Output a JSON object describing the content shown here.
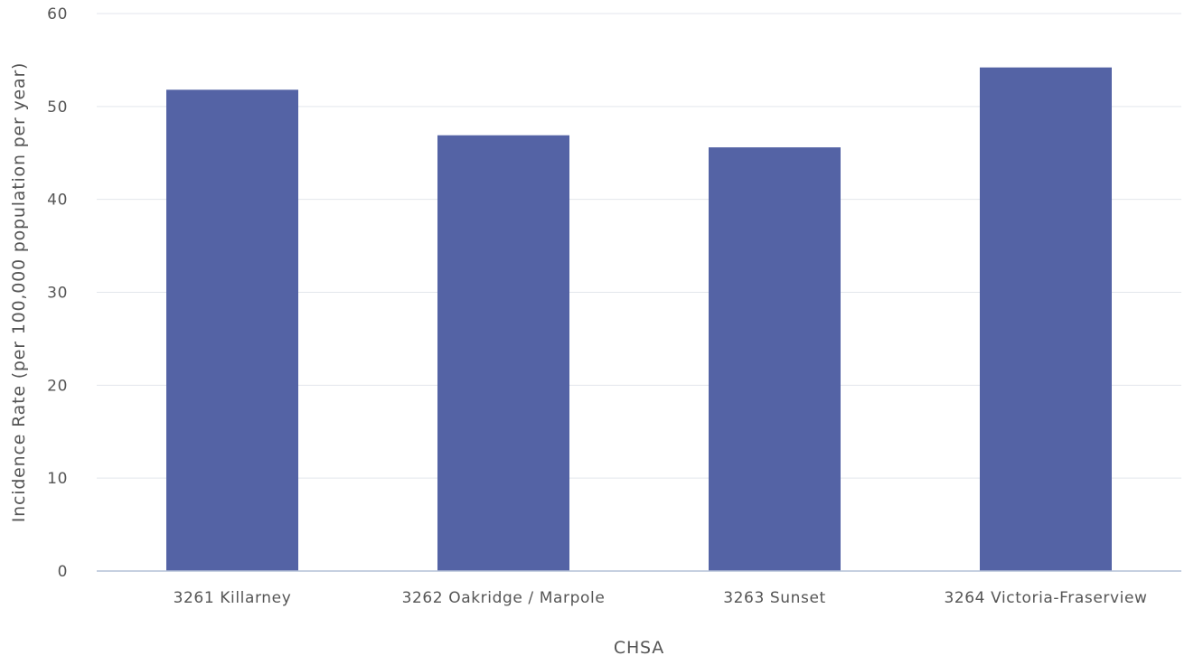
{
  "chart_data": {
    "type": "bar",
    "xlabel": "CHSA",
    "ylabel": "Incidence Rate (per 100,000 population per year)",
    "categories": [
      "3261 Killarney",
      "3262 Oakridge / Marpole",
      "3263 Sunset",
      "3264 Victoria-Fraserview"
    ],
    "values": [
      51.8,
      46.9,
      45.6,
      54.2
    ],
    "ylim": [
      0,
      60
    ],
    "yticks": [
      0,
      10,
      20,
      30,
      40,
      50,
      60
    ],
    "grid": true,
    "legend": "none"
  },
  "colors": {
    "bar": "#5463a5",
    "grid": "#e3e6ec",
    "axis": "#b3c0d6",
    "text": "#555555"
  }
}
